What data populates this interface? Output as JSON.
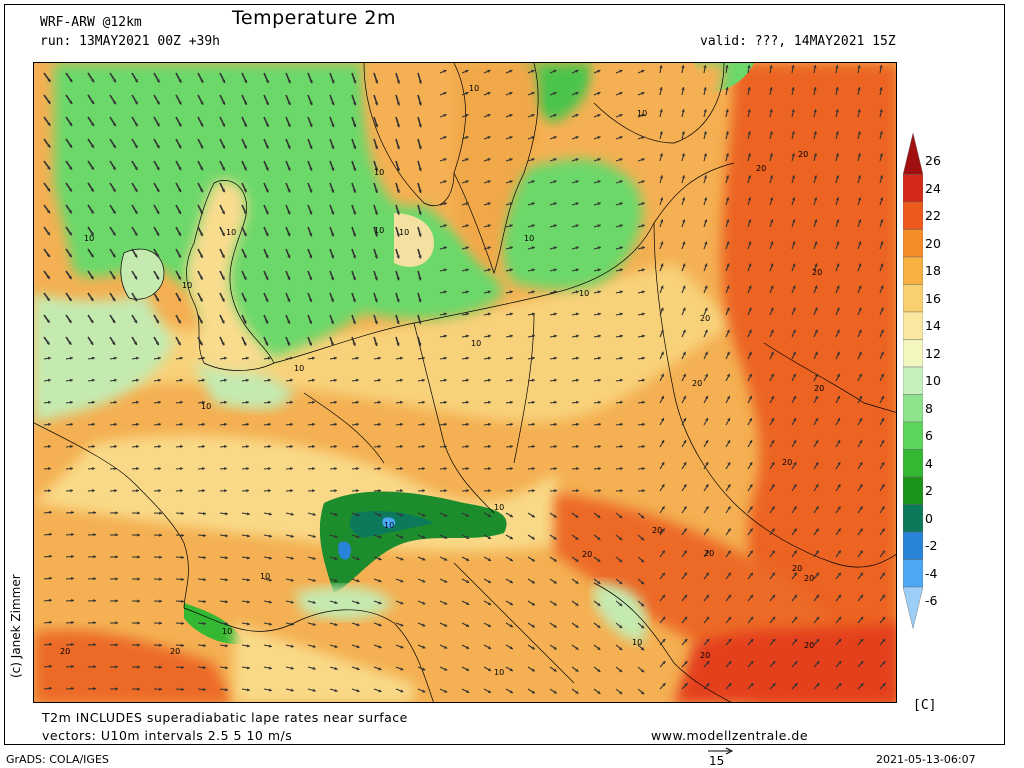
{
  "header": {
    "model": "WRF-ARW @12km",
    "title": "Temperature 2m",
    "run": "run: 13MAY2021 00Z +39h",
    "valid": "valid: ???, 14MAY2021 15Z"
  },
  "footer": {
    "note1": "T2m INCLUDES superadiabatic lape rates near surface",
    "note2": "vectors: U10m intervals 2.5 5 10 m/s",
    "website": "www.modellzentrale.de",
    "grads": "GrADS: COLA/IGES",
    "timestamp": "2021-05-13-06:07",
    "reference_vector": "15"
  },
  "copyright": "(c) Janek Zimmer",
  "unit": "[C]",
  "legend": {
    "levels": [
      {
        "label": "26",
        "color": "#a01010"
      },
      {
        "label": "24",
        "color": "#d42818"
      },
      {
        "label": "22",
        "color": "#ec5a1c"
      },
      {
        "label": "20",
        "color": "#f48c28"
      },
      {
        "label": "18",
        "color": "#f8b040"
      },
      {
        "label": "16",
        "color": "#f9d070"
      },
      {
        "label": "14",
        "color": "#fbe8a0"
      },
      {
        "label": "12",
        "color": "#f4f6c0"
      },
      {
        "label": "10",
        "color": "#c8f0bc"
      },
      {
        "label": "8",
        "color": "#8ee48c"
      },
      {
        "label": "6",
        "color": "#5cd65a"
      },
      {
        "label": "4",
        "color": "#34b834"
      },
      {
        "label": "2",
        "color": "#1c941c"
      },
      {
        "label": "0",
        "color": "#0c7a5a"
      },
      {
        "label": "-2",
        "color": "#2884d8"
      },
      {
        "label": "-4",
        "color": "#4ca8f4"
      },
      {
        "label": "-6",
        "color": "#9ccef8"
      }
    ]
  },
  "map_labels": [
    "10",
    "20"
  ]
}
